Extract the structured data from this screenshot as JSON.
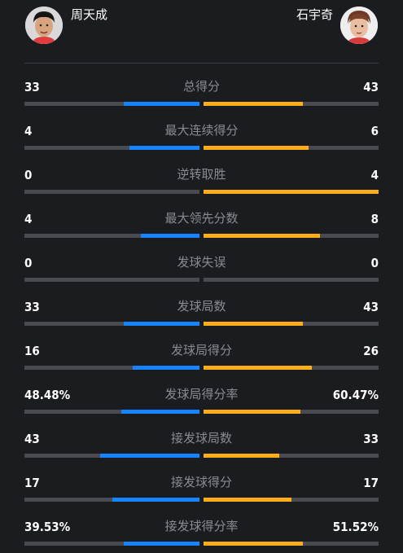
{
  "players": {
    "left": {
      "name": "周天成",
      "color": "#1684ff"
    },
    "right": {
      "name": "石宇奇",
      "color": "#ffae1a"
    }
  },
  "stats": [
    {
      "label": "总得分",
      "left": "33",
      "right": "43",
      "left_share": 0.434,
      "right_share": 0.566
    },
    {
      "label": "最大连续得分",
      "left": "4",
      "right": "6",
      "left_share": 0.4,
      "right_share": 0.6
    },
    {
      "label": "逆转取胜",
      "left": "0",
      "right": "4",
      "left_share": 0.0,
      "right_share": 1.0
    },
    {
      "label": "最大领先分数",
      "left": "4",
      "right": "8",
      "left_share": 0.333,
      "right_share": 0.667
    },
    {
      "label": "发球失误",
      "left": "0",
      "right": "0",
      "left_share": 0.0,
      "right_share": 0.0
    },
    {
      "label": "发球局数",
      "left": "33",
      "right": "43",
      "left_share": 0.434,
      "right_share": 0.566
    },
    {
      "label": "发球局得分",
      "left": "16",
      "right": "26",
      "left_share": 0.381,
      "right_share": 0.619
    },
    {
      "label": "发球局得分率",
      "left": "48.48%",
      "right": "60.47%",
      "left_share": 0.445,
      "right_share": 0.555
    },
    {
      "label": "接发球局数",
      "left": "43",
      "right": "33",
      "left_share": 0.566,
      "right_share": 0.434
    },
    {
      "label": "接发球得分",
      "left": "17",
      "right": "17",
      "left_share": 0.5,
      "right_share": 0.5
    },
    {
      "label": "接发球得分率",
      "left": "39.53%",
      "right": "51.52%",
      "left_share": 0.434,
      "right_share": 0.566
    }
  ]
}
